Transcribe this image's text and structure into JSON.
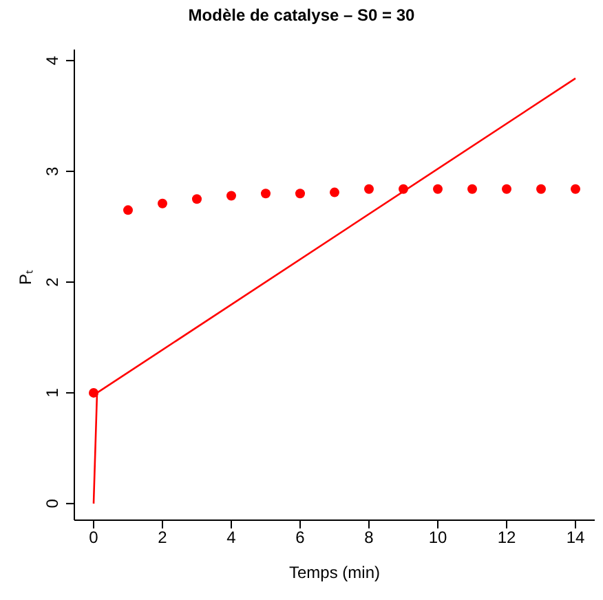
{
  "chart_data": {
    "type": "scatter",
    "title": "Modèle de catalyse – S0 = 30",
    "xlabel": "Temps (min)",
    "ylabel": "Pₜ",
    "series": [
      {
        "marker": "circle",
        "color": "#ff0000",
        "x": [
          0,
          1,
          2,
          3,
          4,
          5,
          6,
          7,
          8,
          9,
          10,
          11,
          12,
          13,
          14
        ],
        "values": [
          1,
          2.65,
          2.71,
          2.75,
          2.78,
          2.8,
          2.8,
          2.81,
          2.84,
          2.84,
          2.84,
          2.84,
          2.84,
          2.84,
          2.84
        ]
      },
      {
        "type": "line",
        "marker": "none",
        "color": "#ff0000",
        "x": [
          0,
          0.1,
          14
        ],
        "values": [
          0,
          1,
          3.84
        ]
      }
    ],
    "xlim": [
      -0.56,
      14.56
    ],
    "xticks": [
      0,
      2,
      4,
      6,
      8,
      10,
      12,
      14
    ],
    "ylim": [
      -0.15,
      4.1
    ],
    "yticks": [
      0,
      1,
      2,
      3,
      4
    ],
    "grid": false,
    "legend": false
  }
}
